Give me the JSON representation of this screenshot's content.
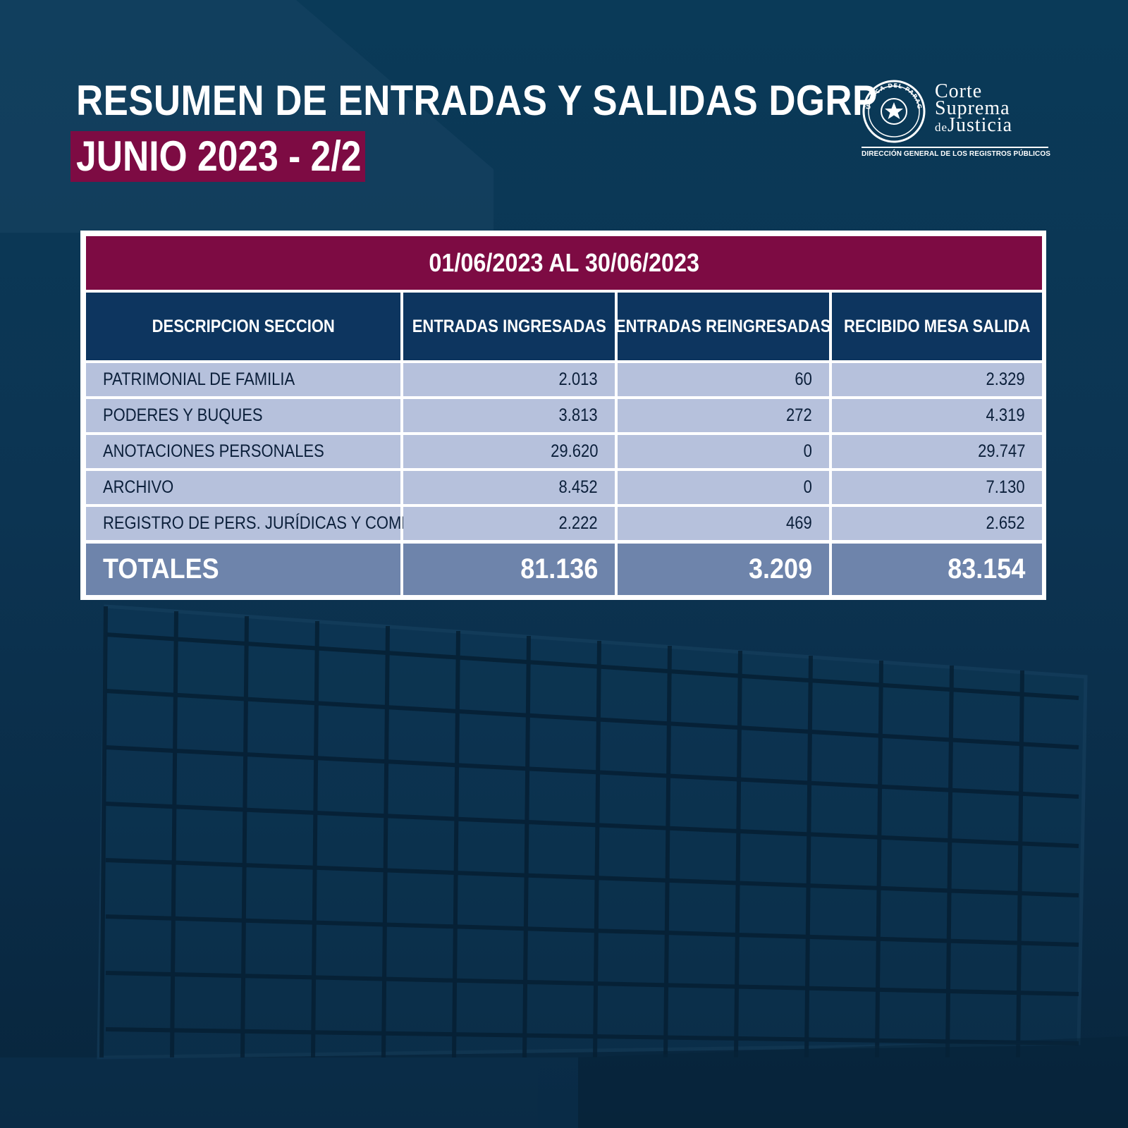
{
  "header": {
    "title": "RESUMEN DE ENTRADAS Y SALIDAS DGRP",
    "subtitle": "JUNIO 2023 - 2/2"
  },
  "logo": {
    "line1": "Corte",
    "line2": "Suprema",
    "line3_prefix": "de",
    "line3": "Justicia",
    "caption": "DIRECCIÓN GENERAL DE LOS REGISTROS PÚBLICOS",
    "seal_text": "REPÚBLICA DEL PARAGUAY"
  },
  "colors": {
    "background": "#0b3452",
    "accent": "#7d0b43",
    "header_blue": "#0d355f",
    "row_light": "#b6c1dc",
    "total_row": "#6e84ab"
  },
  "chart_data": {
    "type": "table",
    "period": "01/06/2023 AL 30/06/2023",
    "columns": [
      "DESCRIPCION SECCION",
      "ENTRADAS INGRESADAS",
      "ENTRADAS REINGRESADAS",
      "RECIBIDO MESA SALIDA"
    ],
    "rows": [
      {
        "descripcion": "PATRIMONIAL DE FAMILIA",
        "ingresadas": "2.013",
        "reingresadas": "60",
        "salida": "2.329"
      },
      {
        "descripcion": "PODERES Y BUQUES",
        "ingresadas": "3.813",
        "reingresadas": "272",
        "salida": "4.319"
      },
      {
        "descripcion": "ANOTACIONES PERSONALES",
        "ingresadas": "29.620",
        "reingresadas": "0",
        "salida": "29.747"
      },
      {
        "descripcion": "ARCHIVO",
        "ingresadas": "8.452",
        "reingresadas": "0",
        "salida": "7.130"
      },
      {
        "descripcion": "REGISTRO DE PERS. JURÍDICAS Y COMERCIO",
        "ingresadas": "2.222",
        "reingresadas": "469",
        "salida": "2.652"
      }
    ],
    "totals": {
      "label": "TOTALES",
      "ingresadas": "81.136",
      "reingresadas": "3.209",
      "salida": "83.154"
    }
  }
}
